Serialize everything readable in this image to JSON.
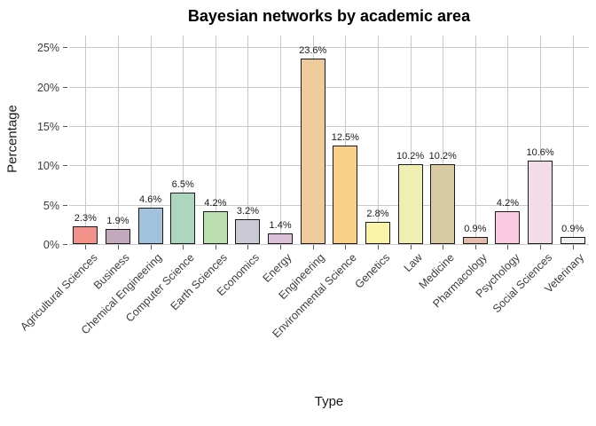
{
  "chart_data": {
    "type": "bar",
    "title": "Bayesian networks by academic area",
    "xlabel": "Type",
    "ylabel": "Percentage",
    "categories": [
      "Agricultural Sciences",
      "Business",
      "Chemical Engineering",
      "Computer Science",
      "Earth Sciences",
      "Economics",
      "Energy",
      "Engineering",
      "Environmental Science",
      "Genetics",
      "Law",
      "Medicine",
      "Pharmacology",
      "Psychology",
      "Social Sciences",
      "Veterinary"
    ],
    "values": [
      2.3,
      1.9,
      4.6,
      6.5,
      4.2,
      3.2,
      1.4,
      23.6,
      12.5,
      2.8,
      10.2,
      10.2,
      0.9,
      4.2,
      10.6,
      0.9
    ],
    "value_labels": [
      "2.3%",
      "1.9%",
      "4.6%",
      "6.5%",
      "4.2%",
      "3.2%",
      "1.4%",
      "23.6%",
      "12.5%",
      "2.8%",
      "10.2%",
      "10.2%",
      "0.9%",
      "4.2%",
      "10.6%",
      "0.9%"
    ],
    "bar_colors": [
      "#f2918a",
      "#c2a9bc",
      "#a2c1dd",
      "#acd7be",
      "#bbdfb1",
      "#cbc9d4",
      "#dcc0d8",
      "#efca9d",
      "#facf88",
      "#fbf4a8",
      "#efefb3",
      "#d8cba3",
      "#e3bcad",
      "#f9c9df",
      "#f3dbe9",
      "#f0f0ee"
    ],
    "bar_border_color": "#1a1a1a",
    "ylim": [
      0,
      26.5
    ],
    "yticks": [
      0,
      5,
      10,
      15,
      20,
      25
    ],
    "ytick_labels": [
      "0%",
      "5%",
      "10%",
      "15%",
      "20%",
      "25%"
    ],
    "grid": "on",
    "gridline_color": "#c9c9c9",
    "background_color": "#ffffff",
    "legend": "none"
  }
}
